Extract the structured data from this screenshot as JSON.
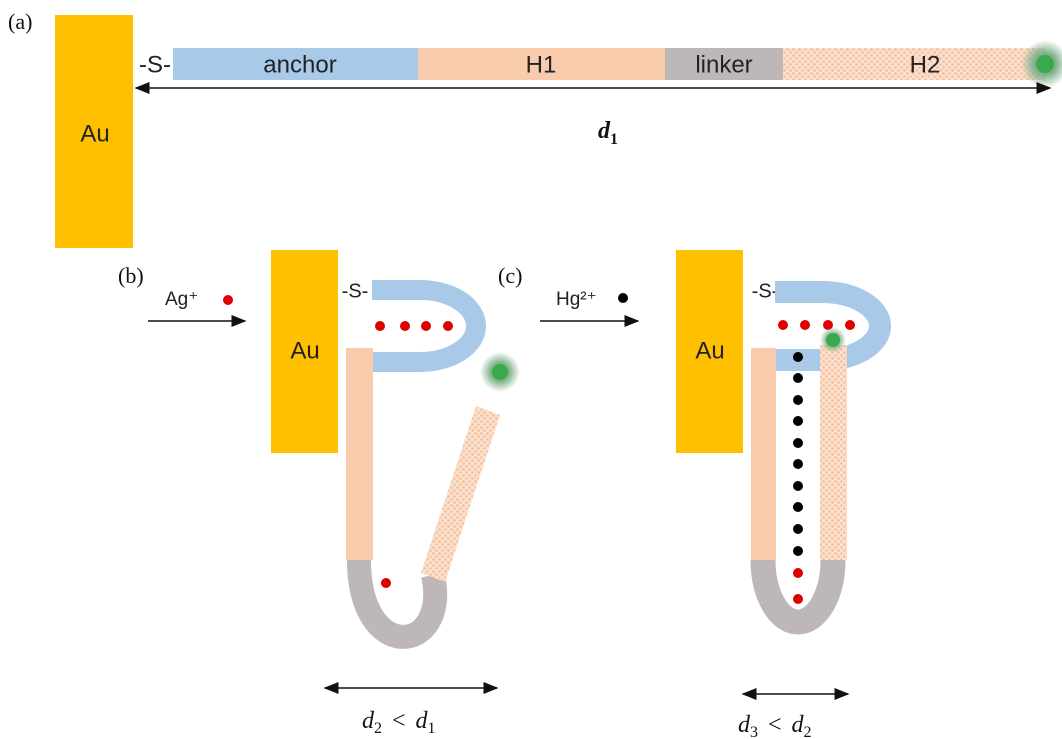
{
  "panel_a": {
    "label": "(a)",
    "electrode": "Au",
    "thiol": "-S-",
    "segments": [
      "anchor",
      "H1",
      "linker",
      "H2"
    ],
    "distance": {
      "symbol": "d",
      "subscript": "1"
    }
  },
  "panel_b": {
    "label": "(b)",
    "ion": "Ag⁺",
    "electrode": "Au",
    "thiol": "-S-",
    "relation": {
      "left": {
        "symbol": "d",
        "subscript": "2"
      },
      "operator": "<",
      "right": {
        "symbol": "d",
        "subscript": "1"
      }
    }
  },
  "panel_c": {
    "label": "(c)",
    "ion": "Hg²⁺",
    "electrode": "Au",
    "thiol": "-S-",
    "relation": {
      "left": {
        "symbol": "d",
        "subscript": "3"
      },
      "operator": "<",
      "right": {
        "symbol": "d",
        "subscript": "2"
      }
    }
  }
}
